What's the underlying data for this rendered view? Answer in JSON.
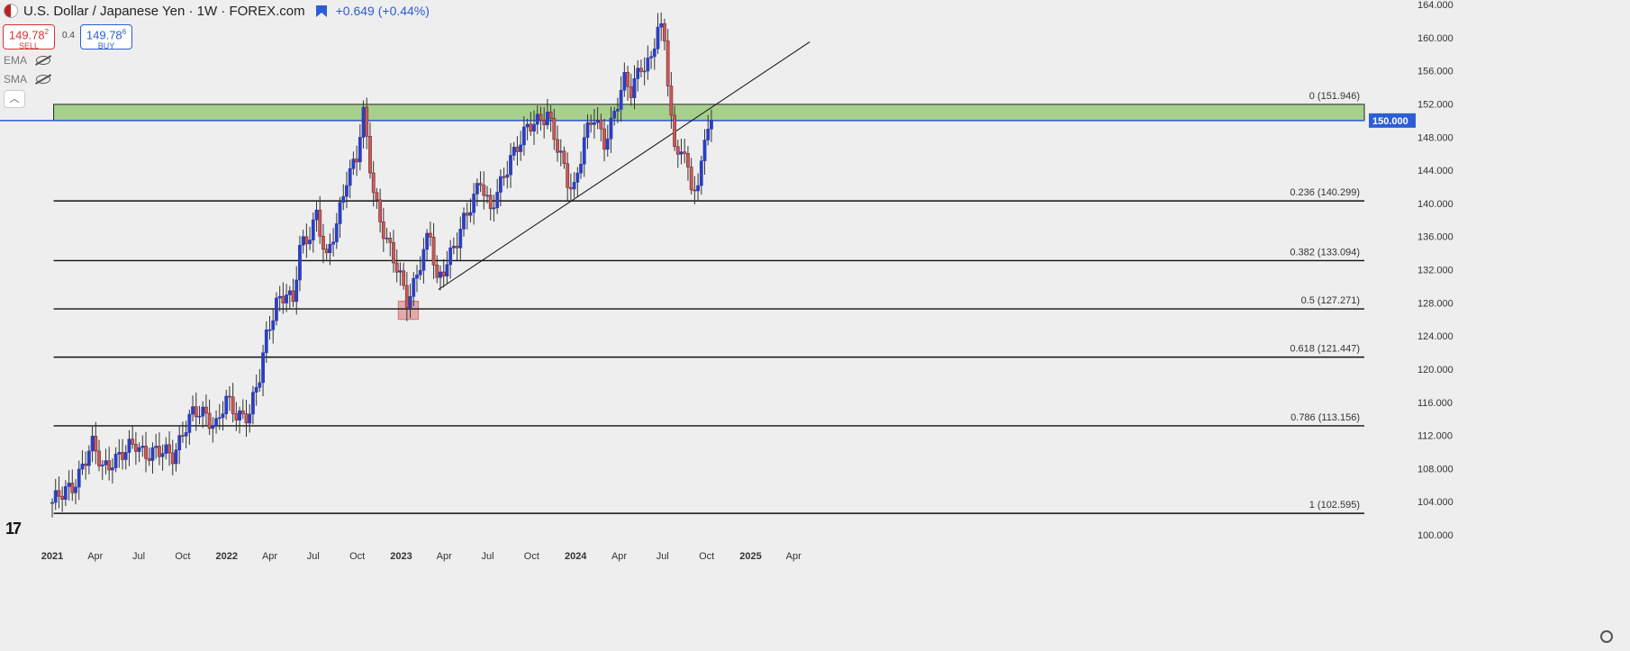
{
  "header": {
    "title": "U.S. Dollar / Japanese Yen · 1W · FOREX.com",
    "change": "+0.649 (+0.44%)"
  },
  "trade": {
    "sell_price": "149.78",
    "sell_price_sup": "2",
    "sell_label": "SELL",
    "spread": "0.4",
    "buy_price": "149.78",
    "buy_price_sup": "6",
    "buy_label": "BUY"
  },
  "indicators": [
    {
      "label": "EMA",
      "icon": "eye-off-icon"
    },
    {
      "label": "SMA",
      "icon": "eye-off-icon"
    }
  ],
  "colors": {
    "background": "#eeeeee",
    "up_candle": "#2c3fbf",
    "down_candle": "#c85a5a",
    "resistance_zone": "#a8d08d",
    "support_box": "#e09999",
    "price_line": "#2c5dd6"
  },
  "chart_data": {
    "type": "candlestick",
    "symbol": "USD/JPY",
    "interval": "1W",
    "ylim": [
      100,
      164
    ],
    "y_ticks": [
      "100.000",
      "104.000",
      "108.000",
      "112.000",
      "116.000",
      "120.000",
      "124.000",
      "128.000",
      "132.000",
      "136.000",
      "140.000",
      "144.000",
      "148.000",
      "152.000",
      "156.000",
      "160.000",
      "164.000"
    ],
    "x_ticks": [
      "2021",
      "Apr",
      "Jul",
      "Oct",
      "2022",
      "Apr",
      "Jul",
      "Oct",
      "2023",
      "Apr",
      "Jul",
      "Oct",
      "2024",
      "Apr",
      "Jul",
      "Oct",
      "2025",
      "Apr"
    ],
    "x_tick_dates": [
      "2021-01-01",
      "2021-04-01",
      "2021-07-01",
      "2021-10-01",
      "2022-01-01",
      "2022-04-01",
      "2022-07-01",
      "2022-10-01",
      "2023-01-01",
      "2023-04-01",
      "2023-07-01",
      "2023-10-01",
      "2024-01-01",
      "2024-04-01",
      "2024-07-01",
      "2024-10-01",
      "2025-01-01",
      "2025-04-01"
    ],
    "current_price": "150.000",
    "fibonacci": [
      {
        "label": "0 (151.946)",
        "value": 151.946
      },
      {
        "label": "0.236 (140.299)",
        "value": 140.299
      },
      {
        "label": "0.382 (133.094)",
        "value": 133.094
      },
      {
        "label": "0.5 (127.271)",
        "value": 127.271
      },
      {
        "label": "0.618 (121.447)",
        "value": 121.447
      },
      {
        "label": "0.786 (113.156)",
        "value": 113.156
      },
      {
        "label": "1 (102.595)",
        "value": 102.595
      }
    ],
    "resistance_zone": {
      "low": 150.0,
      "high": 151.95,
      "start": "2021-01-04"
    },
    "support_box": {
      "low": 126.0,
      "high": 128.2,
      "start": "2022-12-26",
      "end": "2023-02-06"
    },
    "trendline": {
      "start": [
        "2023-03-20",
        129.6
      ],
      "end": [
        "2025-05-05",
        159.5
      ]
    },
    "path_points": [
      [
        "2021-01-01",
        103.8
      ],
      [
        "2021-01-25",
        104.5
      ],
      [
        "2021-02-15",
        106
      ],
      [
        "2021-03-08",
        108.5
      ],
      [
        "2021-03-29",
        110.5
      ],
      [
        "2021-04-19",
        108.1
      ],
      [
        "2021-05-10",
        109.3
      ],
      [
        "2021-06-07",
        109.6
      ],
      [
        "2021-06-28",
        111
      ],
      [
        "2021-07-19",
        110.2
      ],
      [
        "2021-08-16",
        109.6
      ],
      [
        "2021-09-13",
        109.8
      ],
      [
        "2021-10-04",
        112.5
      ],
      [
        "2021-10-25",
        114.2
      ],
      [
        "2021-11-22",
        114.8
      ],
      [
        "2021-12-13",
        113.4
      ],
      [
        "2022-01-03",
        115.8
      ],
      [
        "2022-01-24",
        114.5
      ],
      [
        "2022-02-21",
        115
      ],
      [
        "2022-03-14",
        118.5
      ],
      [
        "2022-03-28",
        123.5
      ],
      [
        "2022-04-18",
        128.5
      ],
      [
        "2022-05-09",
        129.3
      ],
      [
        "2022-05-23",
        127.2
      ],
      [
        "2022-06-06",
        134.5
      ],
      [
        "2022-06-20",
        135.8
      ],
      [
        "2022-07-11",
        139
      ],
      [
        "2022-08-01",
        132.5
      ],
      [
        "2022-08-22",
        137.5
      ],
      [
        "2022-09-12",
        143.5
      ],
      [
        "2022-10-03",
        145
      ],
      [
        "2022-10-17",
        150.5
      ],
      [
        "2022-11-07",
        142
      ],
      [
        "2022-11-21",
        138.5
      ],
      [
        "2022-12-05",
        135.5
      ],
      [
        "2022-12-19",
        132.8
      ],
      [
        "2023-01-02",
        131
      ],
      [
        "2023-01-16",
        128.6
      ],
      [
        "2023-02-06",
        131.5
      ],
      [
        "2023-03-06",
        136
      ],
      [
        "2023-03-20",
        130.5
      ],
      [
        "2023-04-10",
        133.5
      ],
      [
        "2023-05-01",
        135
      ],
      [
        "2023-05-22",
        138.5
      ],
      [
        "2023-06-19",
        143.5
      ],
      [
        "2023-07-10",
        138.5
      ],
      [
        "2023-07-31",
        142
      ],
      [
        "2023-08-21",
        146
      ],
      [
        "2023-09-18",
        148
      ],
      [
        "2023-10-09",
        149.5
      ],
      [
        "2023-11-06",
        151.4
      ],
      [
        "2023-11-27",
        146.5
      ],
      [
        "2023-12-18",
        142.5
      ],
      [
        "2024-01-01",
        142
      ],
      [
        "2024-01-22",
        148
      ],
      [
        "2024-02-12",
        150
      ],
      [
        "2024-03-04",
        147.3
      ],
      [
        "2024-03-25",
        151.3
      ],
      [
        "2024-04-15",
        154.5
      ],
      [
        "2024-04-29",
        153
      ],
      [
        "2024-05-20",
        157
      ],
      [
        "2024-06-10",
        157.4
      ],
      [
        "2024-06-24",
        161
      ],
      [
        "2024-07-08",
        159.5
      ],
      [
        "2024-07-29",
        146.5
      ],
      [
        "2024-08-12",
        147.5
      ],
      [
        "2024-09-02",
        142
      ],
      [
        "2024-09-16",
        140.5
      ],
      [
        "2024-09-30",
        148.7
      ],
      [
        "2024-10-14",
        149.8
      ]
    ]
  }
}
